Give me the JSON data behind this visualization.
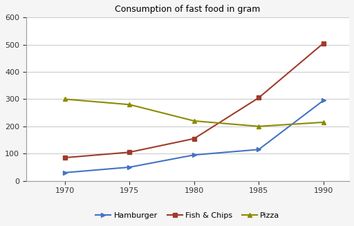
{
  "title": "Consumption of fast food in gram",
  "years": [
    1970,
    1975,
    1980,
    1985,
    1990
  ],
  "hamburger": [
    30,
    50,
    95,
    115,
    295
  ],
  "fish_chips": [
    85,
    105,
    155,
    305,
    505
  ],
  "pizza": [
    300,
    280,
    220,
    200,
    215
  ],
  "hamburger_color": "#4472C4",
  "fish_chips_color": "#9E3B2A",
  "pizza_color": "#8B8B00",
  "ylim": [
    0,
    600
  ],
  "yticks": [
    0,
    100,
    200,
    300,
    400,
    500,
    600
  ],
  "xlim": [
    1967,
    1992
  ],
  "background_color": "#F5F5F5",
  "plot_bg_color": "#FFFFFF",
  "legend_labels": [
    "Hamburger",
    "Fish & Chips",
    "Pizza"
  ],
  "grid_color": "#CCCCCC",
  "linewidth": 1.5,
  "markersize": 5,
  "title_fontsize": 9,
  "tick_fontsize": 8,
  "legend_fontsize": 8
}
